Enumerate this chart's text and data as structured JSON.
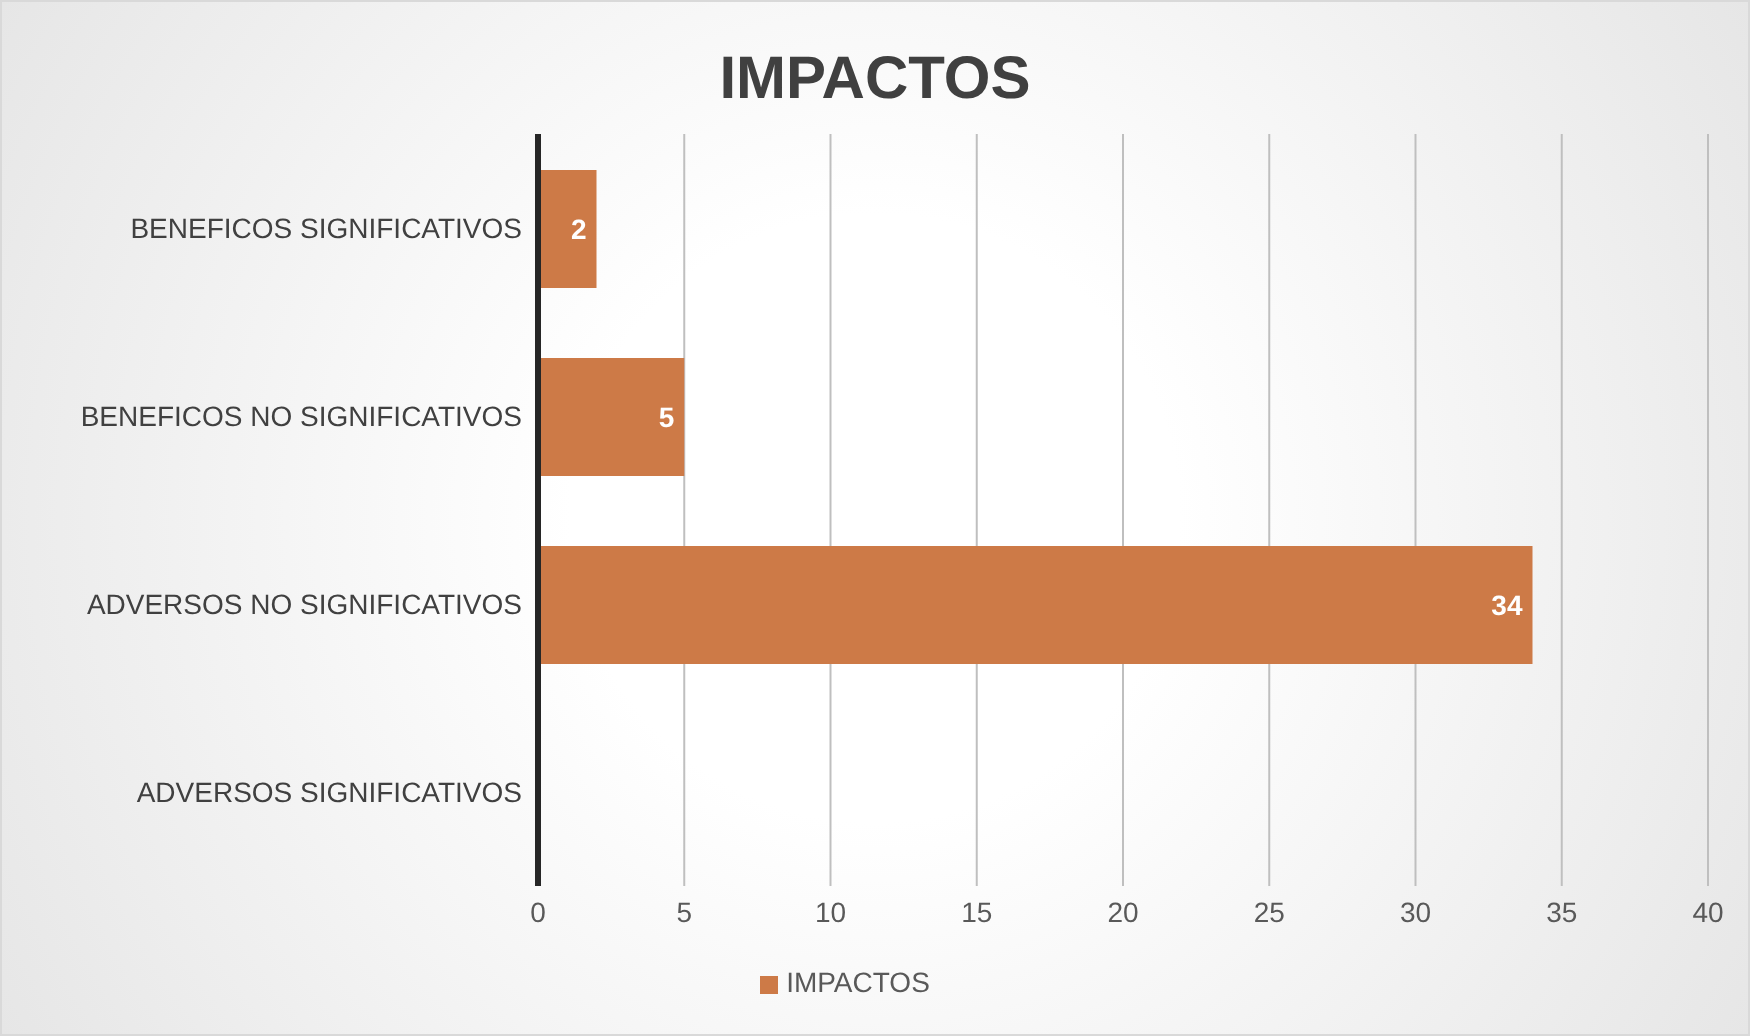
{
  "chart_data": {
    "type": "bar",
    "orientation": "horizontal",
    "title": "IMPACTOS",
    "categories": [
      "BENEFICOS SIGNIFICATIVOS",
      "BENEFICOS NO SIGNIFICATIVOS",
      "ADVERSOS NO SIGNIFICATIVOS",
      "ADVERSOS SIGNIFICATIVOS"
    ],
    "series": [
      {
        "name": "IMPACTOS",
        "color": "#cd7a47",
        "values": [
          2,
          5,
          34,
          0
        ],
        "value_labels": [
          "2",
          "5",
          "34",
          null
        ]
      }
    ],
    "xlim": [
      0,
      40
    ],
    "xticks": [
      0,
      5,
      10,
      15,
      20,
      25,
      30,
      35,
      40
    ],
    "grid": "x",
    "legend": "bottom"
  }
}
